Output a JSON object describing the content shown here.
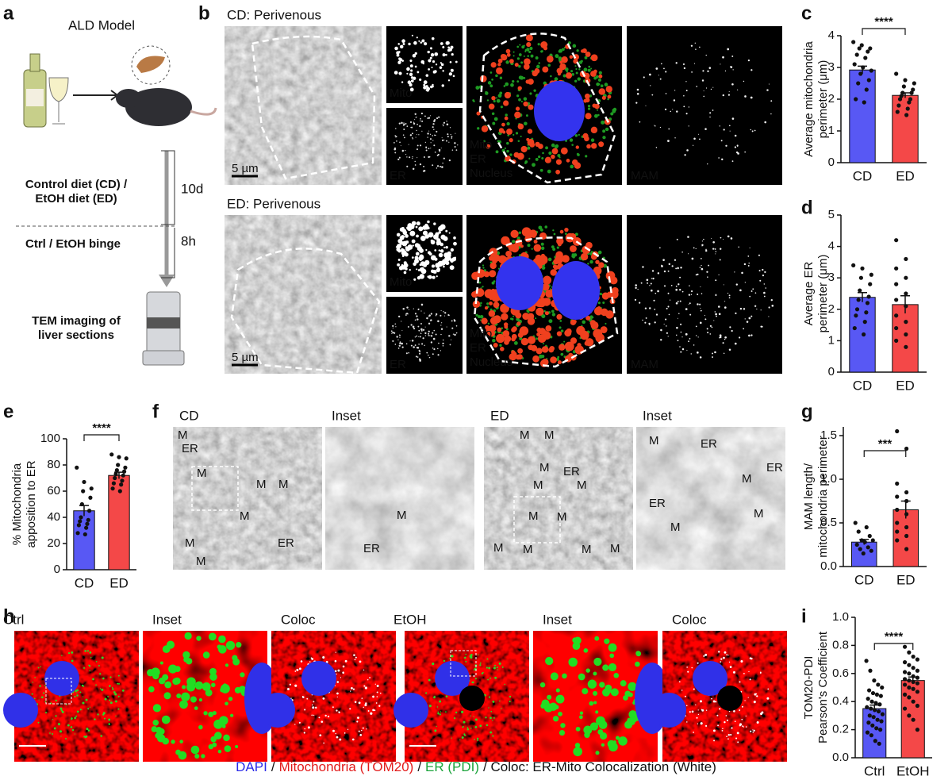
{
  "panel_letters": [
    "a",
    "b",
    "c",
    "d",
    "e",
    "f",
    "g",
    "h",
    "i"
  ],
  "panel_a": {
    "title": "ALD Model",
    "diet": [
      "Control diet (CD) /",
      "EtOH diet (ED)"
    ],
    "diet_duration": "10d",
    "binge": "Ctrl / EtOH binge",
    "binge_duration": "8h",
    "imaging": [
      "TEM imaging of",
      "liver sections"
    ]
  },
  "panel_b": {
    "rows": [
      {
        "title": "CD: Perivenous",
        "scale": "5 µm",
        "mito": "Mito",
        "er": "ER",
        "overlay": [
          "Mito",
          "ER",
          "Nucleus"
        ],
        "mam": "MAM"
      },
      {
        "title": "ED: Perivenous",
        "scale": "5 µm",
        "mito": "Mito",
        "er": "ER",
        "overlay": [
          "Mito",
          "ER",
          "Nucleus"
        ],
        "mam": "MAM"
      }
    ]
  },
  "panel_f": {
    "images": [
      {
        "title": "CD",
        "labels": [
          "M",
          "ER",
          "M",
          "M",
          "M",
          "M",
          "ER",
          "M",
          "M"
        ]
      },
      {
        "title": "Inset",
        "labels": [
          "M",
          "ER"
        ]
      },
      {
        "title": "ED",
        "labels": [
          "M",
          "M",
          "M",
          "ER",
          "M",
          "M",
          "M",
          "M",
          "M",
          "M",
          "M",
          "M"
        ]
      },
      {
        "title": "Inset",
        "labels": [
          "M",
          "ER",
          "ER",
          "ER",
          "M",
          "M",
          "M"
        ]
      }
    ]
  },
  "panel_h": {
    "images": [
      "Ctrl",
      "Inset",
      "Coloc",
      "EtOH",
      "Inset",
      "Coloc"
    ],
    "legend": [
      "DAPI",
      "/",
      "Mitochondria (TOM20)",
      "/",
      "ER (PDI)",
      "/ Coloc: ER-Mito Colocalization (White)"
    ]
  },
  "chart_data": [
    {
      "type": "bar",
      "ylabel": [
        "Average mitochondria",
        "perimeter (μm)"
      ],
      "categories": [
        "CD",
        "ED"
      ],
      "values": [
        2.92,
        2.12
      ],
      "errors": [
        0.12,
        0.08
      ],
      "colors": [
        "#5858f4",
        "#f44848"
      ],
      "significance": "****",
      "points": [
        [
          3.8,
          3.7,
          3.6,
          3.6,
          3.5,
          3.4,
          3.3,
          3.1,
          3.0,
          2.9,
          2.8,
          2.6,
          2.5,
          2.3,
          2.0,
          1.9
        ],
        [
          2.8,
          2.6,
          2.5,
          2.4,
          2.3,
          2.2,
          2.2,
          2.1,
          2.0,
          2.0,
          1.9,
          1.8,
          1.7,
          1.6,
          1.5
        ]
      ],
      "ylim": [
        0,
        4
      ],
      "yticks": [
        0,
        1,
        2,
        3,
        4
      ]
    },
    {
      "type": "bar",
      "ylabel": [
        "Average ER",
        "perimeter (μm)"
      ],
      "categories": [
        "CD",
        "ED"
      ],
      "values": [
        2.38,
        2.15
      ],
      "errors": [
        0.15,
        0.28
      ],
      "colors": [
        "#5858f4",
        "#f44848"
      ],
      "points": [
        [
          3.4,
          3.3,
          3.1,
          3.0,
          2.8,
          2.6,
          2.4,
          2.3,
          2.2,
          2.0,
          1.9,
          1.8,
          1.6,
          1.4,
          1.2
        ],
        [
          4.2,
          3.6,
          3.3,
          3.0,
          2.8,
          2.5,
          2.3,
          2.1,
          1.8,
          1.6,
          1.4,
          1.2,
          1.0,
          0.8
        ]
      ],
      "ylim": [
        0,
        5
      ],
      "yticks": [
        0,
        1,
        2,
        3,
        4,
        5
      ]
    },
    {
      "type": "bar",
      "ylabel": [
        "% Mitochondria",
        "apposition to ER"
      ],
      "categories": [
        "CD",
        "ED"
      ],
      "values": [
        45,
        72
      ],
      "errors": [
        4,
        2.5
      ],
      "colors": [
        "#5858f4",
        "#f44848"
      ],
      "significance": "****",
      "points": [
        [
          78,
          67,
          62,
          60,
          55,
          50,
          45,
          40,
          38,
          37,
          35,
          34,
          32,
          28,
          27
        ],
        [
          88,
          86,
          85,
          80,
          78,
          76,
          75,
          73,
          72,
          70,
          68,
          66,
          65,
          62,
          60
        ]
      ],
      "ylim": [
        0,
        100
      ],
      "yticks": [
        0,
        20,
        40,
        60,
        80,
        100
      ]
    },
    {
      "type": "bar",
      "ylabel": [
        "MAM length/",
        "mitochondria perimeter"
      ],
      "categories": [
        "CD",
        "ED"
      ],
      "values": [
        0.28,
        0.65
      ],
      "errors": [
        0.03,
        0.1
      ],
      "colors": [
        "#5858f4",
        "#f44848"
      ],
      "significance": "***",
      "points": [
        [
          0.5,
          0.45,
          0.4,
          0.35,
          0.3,
          0.3,
          0.28,
          0.25,
          0.22,
          0.2,
          0.18,
          0.15
        ],
        [
          1.55,
          1.35,
          0.95,
          0.85,
          0.8,
          0.75,
          0.65,
          0.6,
          0.5,
          0.45,
          0.4,
          0.35,
          0.3,
          0.2
        ]
      ],
      "ylim": [
        0,
        1.6
      ],
      "yticks": [
        {
          "value": 0,
          "label": "0.0"
        },
        0.5,
        {
          "value": 1,
          "label": "1.0"
        },
        1.5
      ]
    },
    {
      "type": "bar",
      "ylabel": [
        "TOM20-PDI",
        "Pearson's Coefficient"
      ],
      "categories": [
        "Ctrl",
        "EtOH"
      ],
      "values": [
        0.35,
        0.55
      ],
      "errors": [
        0.025,
        0.025
      ],
      "colors": [
        "#5858f4",
        "#f44848"
      ],
      "significance": "****",
      "points": [
        [
          0.69,
          0.62,
          0.55,
          0.52,
          0.5,
          0.48,
          0.46,
          0.45,
          0.44,
          0.42,
          0.4,
          0.39,
          0.38,
          0.36,
          0.35,
          0.34,
          0.33,
          0.31,
          0.3,
          0.29,
          0.27,
          0.26,
          0.25,
          0.23,
          0.21,
          0.2,
          0.18,
          0.16,
          0.12,
          0.1
        ],
        [
          0.79,
          0.75,
          0.72,
          0.7,
          0.68,
          0.66,
          0.64,
          0.62,
          0.61,
          0.6,
          0.58,
          0.57,
          0.56,
          0.55,
          0.54,
          0.53,
          0.52,
          0.5,
          0.49,
          0.47,
          0.45,
          0.43,
          0.4,
          0.37,
          0.35,
          0.3,
          0.27,
          0.2
        ]
      ],
      "ylim": [
        0,
        1
      ],
      "yticks": [
        {
          "value": 0,
          "label": "0.0"
        },
        0.2,
        0.4,
        0.6,
        0.8,
        {
          "value": 1,
          "label": "1.0"
        }
      ]
    }
  ]
}
